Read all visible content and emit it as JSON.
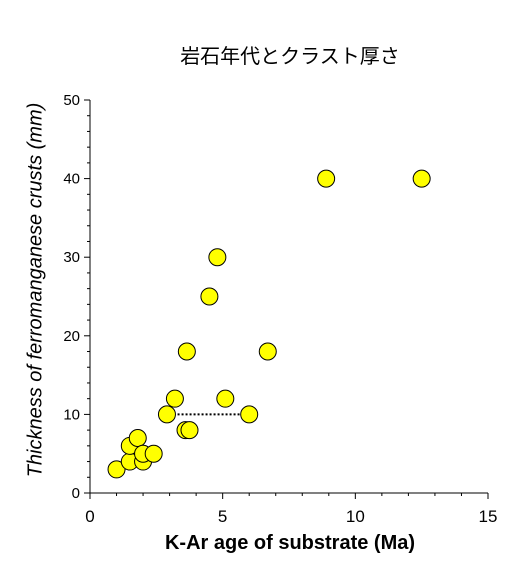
{
  "chart_data": {
    "type": "scatter",
    "title": "岩石年代とクラスト厚さ",
    "xlabel": "K-Ar age of substrate (Ma)",
    "ylabel": "Thickness of ferromanganese crusts (mm)",
    "xlim": [
      0,
      15
    ],
    "ylim": [
      0,
      50
    ],
    "x_ticks": [
      "0",
      "5",
      "10",
      "15"
    ],
    "y_ticks": [
      "0",
      "10",
      "20",
      "30",
      "40",
      "50"
    ],
    "grid": false,
    "legend": "none",
    "marker_color": "#ffff00",
    "marker_edge_color": "#000000",
    "points": [
      {
        "x": 1.0,
        "y": 3
      },
      {
        "x": 1.5,
        "y": 4
      },
      {
        "x": 1.5,
        "y": 6
      },
      {
        "x": 1.8,
        "y": 7
      },
      {
        "x": 2.0,
        "y": 4
      },
      {
        "x": 2.0,
        "y": 5
      },
      {
        "x": 2.4,
        "y": 5
      },
      {
        "x": 2.9,
        "y": 10
      },
      {
        "x": 3.2,
        "y": 12
      },
      {
        "x": 3.6,
        "y": 8
      },
      {
        "x": 3.75,
        "y": 8
      },
      {
        "x": 3.65,
        "y": 18
      },
      {
        "x": 4.5,
        "y": 25
      },
      {
        "x": 4.8,
        "y": 30
      },
      {
        "x": 5.1,
        "y": 12
      },
      {
        "x": 6.0,
        "y": 10
      },
      {
        "x": 6.7,
        "y": 18
      },
      {
        "x": 8.9,
        "y": 40
      },
      {
        "x": 12.5,
        "y": 40
      }
    ],
    "dotted_range": {
      "x_start": 3.3,
      "x_end": 5.8,
      "y": 10
    }
  }
}
